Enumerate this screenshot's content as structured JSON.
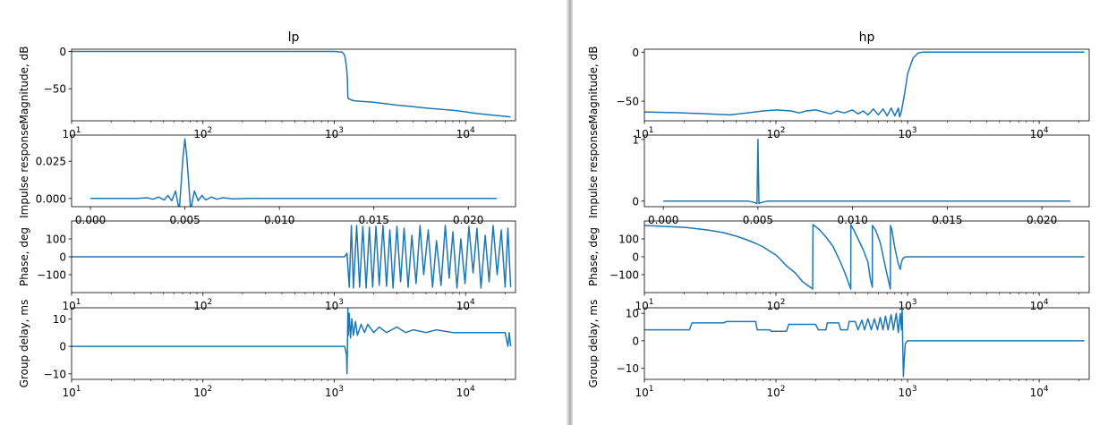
{
  "chart_data": [
    {
      "type": "line",
      "title": "lp",
      "subplots": [
        {
          "id": "magnitude",
          "ylabel": "Magnitude, dB",
          "xscale": "log",
          "xlim": [
            10,
            24000
          ],
          "ylim": [
            -93,
            3
          ],
          "yticks": [
            0,
            -50
          ],
          "ytick_labels": [
            "0",
            "−50"
          ],
          "xticks": [
            10,
            100,
            1000,
            10000
          ],
          "xtick_labels": [
            {
              "base": "10",
              "exp": "1"
            },
            {
              "base": "10",
              "exp": "2"
            },
            {
              "base": "10",
              "exp": "3"
            },
            {
              "base": "10",
              "exp": "4"
            }
          ],
          "series": [
            {
              "color": "#1f77b4",
              "x": [
                10,
                100,
                500,
                1000,
                1150,
                1200,
                1220,
                1240,
                1260,
                1270,
                1300,
                1400,
                1600,
                2000,
                3000,
                4000,
                5000,
                6000,
                8000,
                10000,
                12000,
                15000,
                20000,
                22050
              ],
              "y": [
                0,
                0,
                0,
                0,
                -1,
                -5,
                -12,
                -22,
                -38,
                -62,
                -64,
                -66,
                -67,
                -68,
                -72,
                -74,
                -76,
                -77,
                -79,
                -81,
                -83,
                -85,
                -87,
                -88
              ]
            }
          ]
        },
        {
          "id": "impulse",
          "ylabel": "Impulse response",
          "xscale": "linear",
          "xlim": [
            -0.001,
            0.0225
          ],
          "ylim": [
            -0.0055,
            0.0425
          ],
          "yticks": [
            0,
            0.025
          ],
          "ytick_labels": [
            "0.000",
            "0.025"
          ],
          "xticks": [
            0,
            0.005,
            0.01,
            0.015,
            0.02
          ],
          "xtick_labels": [
            "0.000",
            "0.005",
            "0.010",
            "0.015",
            "0.020"
          ],
          "series": [
            {
              "color": "#1f77b4",
              "x": [
                0,
                0.0025,
                0.003,
                0.0033,
                0.0036,
                0.0039,
                0.0041,
                0.0043,
                0.0045,
                0.0047,
                0.0049,
                0.005,
                0.0051,
                0.0053,
                0.0055,
                0.0057,
                0.0059,
                0.0061,
                0.0064,
                0.0067,
                0.007,
                0.0075,
                0.0085,
                0.01,
                0.015,
                0.0215
              ],
              "y": [
                0,
                0,
                0.0005,
                -0.0005,
                0.001,
                -0.001,
                0.002,
                -0.0015,
                0.005,
                -0.008,
                0.028,
                0.04,
                0.028,
                -0.008,
                0.005,
                -0.0015,
                0.002,
                -0.001,
                0.001,
                -0.0005,
                0.0005,
                -0.0002,
                0.0001,
                0,
                0,
                0
              ]
            }
          ]
        },
        {
          "id": "phase",
          "ylabel": "Phase, deg",
          "xscale": "log",
          "xlim": [
            10,
            24000
          ],
          "ylim": [
            -200,
            200
          ],
          "yticks": [
            100,
            0,
            -100
          ],
          "ytick_labels": [
            "100",
            "0",
            "−100"
          ],
          "xticks": [
            10,
            100,
            1000,
            10000
          ],
          "xtick_labels": [
            {
              "base": "10",
              "exp": "1"
            },
            {
              "base": "10",
              "exp": "2"
            },
            {
              "base": "10",
              "exp": "3"
            },
            {
              "base": "10",
              "exp": "4"
            }
          ],
          "series": [
            {
              "color": "#1f77b4",
              "x": [
                10,
                100,
                1000,
                1200,
                1250,
                1300,
                1350,
                1400,
                1480,
                1560,
                1650,
                1750,
                1850,
                1960,
                2080,
                2200,
                2350,
                2500,
                2650,
                2800,
                3000,
                3200,
                3400,
                3650,
                3900,
                4200,
                4500,
                4800,
                5200,
                5600,
                6000,
                6500,
                7000,
                7500,
                8000,
                8600,
                9200,
                9900,
                10600,
                11400,
                12200,
                13100,
                14100,
                15100,
                16200,
                17400,
                18700,
                20000,
                21000,
                22050
              ],
              "y": [
                0,
                0,
                0,
                0,
                20,
                -170,
                175,
                -175,
                175,
                -170,
                170,
                -175,
                165,
                -170,
                170,
                -160,
                175,
                -165,
                150,
                -175,
                170,
                -140,
                160,
                -170,
                120,
                -150,
                175,
                -100,
                150,
                -170,
                90,
                -160,
                175,
                -120,
                140,
                -175,
                100,
                -150,
                170,
                -90,
                160,
                -175,
                120,
                -140,
                175,
                -100,
                150,
                -170,
                160,
                -170
              ]
            }
          ]
        },
        {
          "id": "group-delay",
          "ylabel": "Group delay, ms",
          "xscale": "log",
          "xlim": [
            10,
            24000
          ],
          "ylim": [
            -12,
            14
          ],
          "yticks": [
            10,
            0,
            -10
          ],
          "ytick_labels": [
            "10",
            "0",
            "−10"
          ],
          "xticks": [
            10,
            100,
            1000,
            10000
          ],
          "xtick_labels": [
            {
              "base": "10",
              "exp": "1"
            },
            {
              "base": "10",
              "exp": "2"
            },
            {
              "base": "10",
              "exp": "3"
            },
            {
              "base": "10",
              "exp": "4"
            }
          ],
          "series": [
            {
              "color": "#1f77b4",
              "x": [
                10,
                100,
                1000,
                1200,
                1240,
                1250,
                1260,
                1270,
                1280,
                1300,
                1330,
                1360,
                1400,
                1450,
                1500,
                1600,
                1700,
                1800,
                2000,
                2200,
                2500,
                3000,
                3500,
                4000,
                5000,
                6000,
                8000,
                10000,
                15000,
                20000,
                21000,
                21500,
                22050
              ],
              "y": [
                0,
                0,
                0,
                0,
                -3,
                -10,
                0,
                14,
                4,
                12,
                3,
                10,
                4,
                9,
                4,
                8,
                5,
                8,
                5,
                7,
                5,
                7,
                5,
                6,
                5,
                6,
                5,
                5,
                5,
                5,
                0,
                5,
                0
              ]
            }
          ]
        }
      ]
    },
    {
      "type": "line",
      "title": "hp",
      "subplots": [
        {
          "id": "magnitude",
          "ylabel": "Magnitude, dB",
          "xscale": "log",
          "xlim": [
            10,
            24000
          ],
          "ylim": [
            -70,
            3
          ],
          "yticks": [
            0,
            -50
          ],
          "ytick_labels": [
            "0",
            "−50"
          ],
          "xticks": [
            10,
            100,
            1000,
            10000
          ],
          "xtick_labels": [
            {
              "base": "10",
              "exp": "1"
            },
            {
              "base": "10",
              "exp": "2"
            },
            {
              "base": "10",
              "exp": "3"
            },
            {
              "base": "10",
              "exp": "4"
            }
          ],
          "series": [
            {
              "color": "#1f77b4",
              "x": [
                10,
                20,
                30,
                45,
                60,
                80,
                100,
                130,
                150,
                170,
                200,
                230,
                260,
                290,
                330,
                380,
                420,
                460,
                500,
                550,
                600,
                650,
                700,
                750,
                800,
                850,
                870,
                900,
                950,
                1000,
                1100,
                1200,
                1300,
                1500,
                2000,
                5000,
                10000,
                22050
              ],
              "y": [
                -61,
                -62,
                -63,
                -64,
                -62,
                -60,
                -59,
                -60,
                -62,
                -60,
                -59,
                -61,
                -63,
                -60,
                -62,
                -59,
                -63,
                -60,
                -64,
                -58,
                -64,
                -58,
                -65,
                -57,
                -65,
                -57,
                -66,
                -60,
                -42,
                -22,
                -6,
                -1,
                0,
                0,
                0,
                0,
                0,
                0
              ]
            }
          ]
        },
        {
          "id": "impulse",
          "ylabel": "Impulse response",
          "xscale": "linear",
          "xlim": [
            -0.001,
            0.0225
          ],
          "ylim": [
            -0.09,
            1.07
          ],
          "yticks": [
            0,
            1
          ],
          "ytick_labels": [
            "0",
            "1"
          ],
          "xticks": [
            0,
            0.005,
            0.01,
            0.015,
            0.02
          ],
          "xtick_labels": [
            "0.000",
            "0.005",
            "0.010",
            "0.015",
            "0.020"
          ],
          "series": [
            {
              "color": "#1f77b4",
              "x": [
                0,
                0.0045,
                0.0048,
                0.00495,
                0.005,
                0.00505,
                0.0052,
                0.0055,
                0.01,
                0.0215
              ],
              "y": [
                0,
                0,
                -0.02,
                -0.04,
                1.0,
                -0.04,
                -0.02,
                0,
                0,
                0
              ]
            }
          ]
        },
        {
          "id": "phase",
          "ylabel": "Phase, deg",
          "xscale": "log",
          "xlim": [
            10,
            24000
          ],
          "ylim": [
            -200,
            200
          ],
          "yticks": [
            100,
            0,
            -100
          ],
          "ytick_labels": [
            "100",
            "0",
            "−100"
          ],
          "xticks": [
            10,
            100,
            1000,
            10000
          ],
          "xtick_labels": [
            {
              "base": "10",
              "exp": "1"
            },
            {
              "base": "10",
              "exp": "2"
            },
            {
              "base": "10",
              "exp": "3"
            },
            {
              "base": "10",
              "exp": "4"
            }
          ],
          "series": [
            {
              "color": "#1f77b4",
              "x": [
                10,
                20,
                30,
                40,
                50,
                60,
                70,
                80,
                90,
                100,
                110,
                120,
                140,
                160,
                190,
                191,
                215,
                240,
                270,
                300,
                330,
                370,
                371,
                390,
                420,
                460,
                500,
                520,
                540,
                541,
                570,
                620,
                680,
                740,
                742,
                760,
                800,
                850,
                880,
                900,
                920,
                950,
                1000,
                2000,
                22050
              ],
              "y": [
                175,
                165,
                150,
                135,
                115,
                95,
                75,
                55,
                30,
                10,
                -20,
                -50,
                -90,
                -140,
                -180,
                180,
                150,
                110,
                60,
                -10,
                -80,
                -180,
                180,
                150,
                100,
                40,
                -30,
                -120,
                -170,
                175,
                150,
                80,
                -60,
                -180,
                175,
                150,
                50,
                -40,
                -70,
                -30,
                -10,
                -2,
                0,
                0,
                0
              ]
            }
          ]
        },
        {
          "id": "group-delay",
          "ylabel": "Group delay, ms",
          "xscale": "log",
          "xlim": [
            10,
            24000
          ],
          "ylim": [
            -14,
            12
          ],
          "yticks": [
            10,
            0,
            -10
          ],
          "ytick_labels": [
            "10",
            "0",
            "−10"
          ],
          "xticks": [
            10,
            100,
            1000,
            10000
          ],
          "xtick_labels": [
            {
              "base": "10",
              "exp": "1"
            },
            {
              "base": "10",
              "exp": "2"
            },
            {
              "base": "10",
              "exp": "3"
            },
            {
              "base": "10",
              "exp": "4"
            }
          ],
          "series": [
            {
              "color": "#1f77b4",
              "x": [
                10,
                22,
                23,
                40,
                42,
                70,
                72,
                90,
                92,
                120,
                125,
                200,
                210,
                240,
                245,
                300,
                310,
                350,
                360,
                400,
                420,
                450,
                470,
                500,
                530,
                560,
                590,
                620,
                650,
                680,
                710,
                750,
                780,
                820,
                850,
                880,
                900,
                910,
                920,
                930,
                940,
                960,
                1000,
                22050
              ],
              "y": [
                4,
                4,
                6.5,
                6.5,
                7,
                7,
                4,
                4,
                3.5,
                3.5,
                6,
                6,
                4,
                4,
                6.5,
                6.5,
                4,
                4,
                7,
                7,
                4,
                7.5,
                4,
                8,
                4,
                8,
                4,
                8.5,
                4,
                9,
                4,
                9.5,
                4,
                10,
                3,
                10,
                4,
                12,
                -2,
                -13,
                -8,
                -1,
                0,
                0
              ]
            }
          ]
        }
      ]
    }
  ]
}
